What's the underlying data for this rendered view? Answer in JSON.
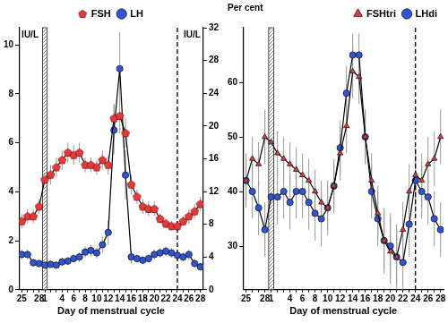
{
  "chart_data": [
    {
      "type": "line",
      "x_label": "Day of menstrual cycle",
      "y_label": "IU/L",
      "y2_label": "IU/L",
      "categories": [
        25,
        null,
        null,
        28,
        1,
        null,
        null,
        4,
        null,
        6,
        null,
        8,
        null,
        10,
        null,
        12,
        null,
        14,
        null,
        16,
        null,
        18,
        null,
        20,
        null,
        22,
        null,
        24,
        null,
        26,
        null,
        28
      ],
      "series": [
        {
          "name": "FSH",
          "color": "#e8393a",
          "marker": "pentagon",
          "line_style": "solid",
          "values": [
            2.8,
            3.0,
            3.0,
            3.4,
            4.5,
            4.7,
            5.0,
            5.3,
            5.6,
            5.5,
            5.6,
            5.1,
            5.1,
            5.0,
            5.3,
            5.1,
            7.0,
            7.1,
            6.4,
            4.3,
            3.8,
            3.4,
            3.3,
            3.3,
            2.9,
            2.7,
            2.6,
            2.6,
            2.8,
            3.0,
            3.2,
            3.5
          ],
          "errors": [
            0.3,
            0.3,
            0.3,
            0.3,
            0.4,
            0.4,
            0.4,
            0.4,
            0.4,
            0.4,
            0.4,
            0.3,
            0.3,
            0.3,
            0.4,
            0.4,
            0.6,
            0.7,
            0.6,
            0.4,
            0.3,
            0.3,
            0.3,
            0.3,
            0.2,
            0.2,
            0.2,
            0.2,
            0.2,
            0.3,
            0.3,
            0.3
          ]
        },
        {
          "name": "LH",
          "color": "#2f55d4",
          "marker": "circle",
          "line_style": "solid",
          "axis": "y2",
          "values": [
            4.3,
            4.3,
            3.3,
            3.2,
            3.0,
            3.1,
            3.0,
            3.4,
            3.5,
            3.8,
            4.0,
            4.6,
            4.8,
            4.5,
            5.5,
            7.0,
            19.5,
            27.0,
            14.0,
            4.0,
            3.8,
            3.6,
            3.8,
            4.3,
            4.5,
            4.7,
            4.5,
            4.2,
            4.0,
            4.3,
            3.2,
            2.8
          ],
          "errors": [
            0.6,
            0.6,
            0.5,
            0.5,
            0.4,
            0.4,
            0.4,
            0.5,
            0.5,
            0.5,
            0.6,
            0.7,
            0.7,
            0.7,
            1.0,
            1.5,
            3.0,
            4.5,
            3.0,
            0.8,
            0.5,
            0.5,
            0.5,
            0.6,
            0.6,
            0.6,
            0.6,
            0.6,
            0.6,
            0.6,
            0.5,
            0.5
          ]
        }
      ],
      "ylim": [
        0,
        10.7
      ],
      "yticks": [
        0,
        2,
        4,
        6,
        8,
        10
      ],
      "y2lim": [
        0,
        32
      ],
      "y2ticks": [
        0,
        4,
        8,
        12,
        16,
        20,
        24,
        28,
        32
      ],
      "grid": false,
      "legend": "top",
      "shaded_day": 1,
      "dashed_day": 24
    },
    {
      "type": "line",
      "x_label": "Day of menstrual cycle",
      "y_label": "Per cent",
      "categories": [
        25,
        null,
        null,
        28,
        1,
        null,
        null,
        4,
        null,
        6,
        null,
        8,
        null,
        10,
        null,
        12,
        null,
        14,
        null,
        16,
        null,
        18,
        null,
        20,
        null,
        22,
        null,
        24,
        null,
        26,
        null,
        28
      ],
      "series": [
        {
          "name": "FSHtri",
          "color": "#e8393a",
          "marker": "triangle",
          "line_style": "solid",
          "values": [
            42,
            46,
            45,
            50,
            49,
            47,
            46,
            45,
            44,
            43,
            42,
            40,
            38,
            37,
            41,
            47,
            52,
            62,
            61,
            50,
            42,
            36,
            31,
            29,
            28,
            33,
            40,
            43,
            42,
            45,
            46,
            50
          ],
          "errors": [
            4,
            4,
            4,
            5,
            4,
            4,
            4,
            4,
            4,
            4,
            4,
            4,
            4,
            4,
            4,
            5,
            5,
            5,
            5,
            5,
            5,
            5,
            5,
            6,
            5,
            5,
            5,
            5,
            5,
            5,
            5,
            5
          ]
        },
        {
          "name": "LHdi",
          "color": "#2f55d4",
          "marker": "circle",
          "line_style": "solid",
          "values": [
            42,
            40,
            37,
            33,
            39,
            39,
            40,
            38,
            40,
            40,
            38,
            36,
            35,
            37,
            41,
            48,
            58,
            65,
            65,
            50,
            40,
            35,
            31,
            30,
            28,
            27,
            34,
            42,
            40,
            39,
            35,
            33
          ],
          "errors": [
            5,
            5,
            5,
            5,
            5,
            5,
            5,
            5,
            5,
            5,
            5,
            5,
            5,
            5,
            5,
            5,
            5,
            4,
            4,
            5,
            5,
            5,
            6,
            6,
            6,
            6,
            6,
            6,
            5,
            5,
            5,
            5
          ]
        }
      ],
      "ylim": [
        22,
        70
      ],
      "yticks": [
        30,
        40,
        50,
        60
      ],
      "grid": false,
      "legend": "top-right",
      "shaded_day": 1,
      "dashed_day": 24
    }
  ]
}
